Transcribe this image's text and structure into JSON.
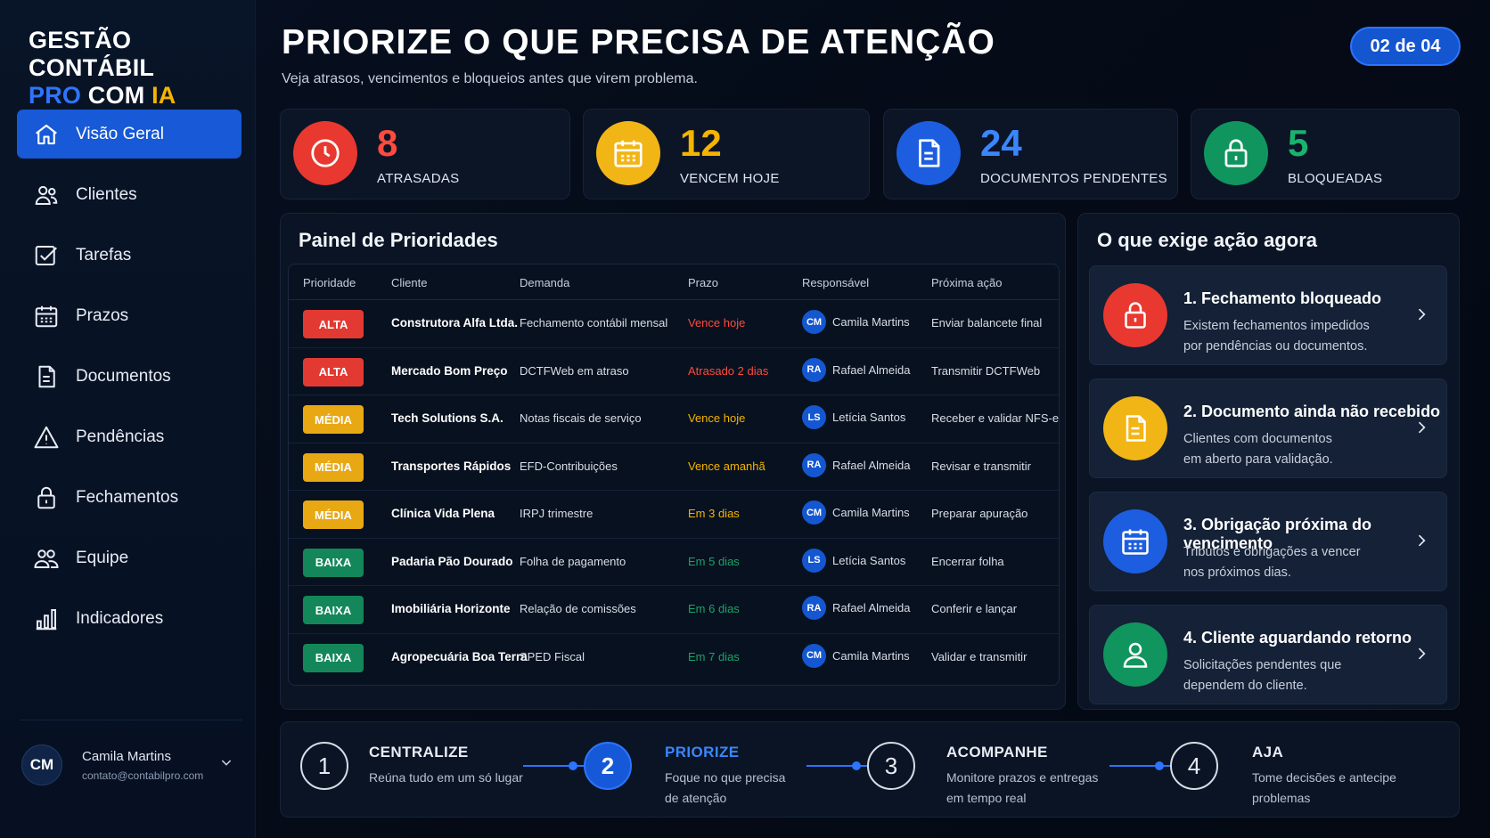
{
  "brand": {
    "line1": "GESTÃO CONTÁBIL",
    "pro": "PRO",
    "com": " COM ",
    "ia": "IA"
  },
  "nav": [
    {
      "label": "Visão Geral",
      "icon": "home-icon",
      "active": true
    },
    {
      "label": "Clientes",
      "icon": "users-icon"
    },
    {
      "label": "Tarefas",
      "icon": "checkbox-icon"
    },
    {
      "label": "Prazos",
      "icon": "calendar-icon"
    },
    {
      "label": "Documentos",
      "icon": "document-icon"
    },
    {
      "label": "Pendências",
      "icon": "warning-icon"
    },
    {
      "label": "Fechamentos",
      "icon": "lock-icon"
    },
    {
      "label": "Equipe",
      "icon": "team-icon"
    },
    {
      "label": "Indicadores",
      "icon": "bar-chart-icon"
    }
  ],
  "user": {
    "initials": "CM",
    "name": "Camila Martins",
    "email": "contato@contabilpro.com"
  },
  "header": {
    "title": "PRIORIZE O QUE PRECISA DE ATENÇÃO",
    "subtitle": "Veja atrasos, vencimentos e bloqueios antes que virem problema.",
    "page": "02 de 04"
  },
  "stats": [
    {
      "value": "8",
      "label": "ATRASADAS",
      "color": "#e8382f",
      "icon": "clock-icon"
    },
    {
      "value": "12",
      "label": "VENCEM HOJE",
      "color": "#f2b516",
      "icon": "calendar-icon"
    },
    {
      "value": "24",
      "label": "DOCUMENTOS PENDENTES",
      "color": "#1d5ee0",
      "icon": "document-icon"
    },
    {
      "value": "5",
      "label": "BLOQUEADAS",
      "color": "#10955e",
      "icon": "lock-icon"
    }
  ],
  "panel": {
    "title": "Painel de Prioridades",
    "headers": [
      "Prioridade",
      "Cliente",
      "Demanda",
      "Prazo",
      "Responsável",
      "Próxima ação"
    ],
    "rows": [
      {
        "priority": "ALTA",
        "client": "Construtora Alfa Ltda.",
        "demand": "Fechamento contábil mensal",
        "deadline": "Vence hoje",
        "initials": "CM",
        "resp": "Camila Martins",
        "next": "Enviar balancete final"
      },
      {
        "priority": "ALTA",
        "client": "Mercado Bom Preço",
        "demand": "DCTFWeb em atraso",
        "deadline": "Atrasado 2 dias",
        "initials": "RA",
        "resp": "Rafael Almeida",
        "next": "Transmitir DCTFWeb"
      },
      {
        "priority": "MÉDIA",
        "client": "Tech Solutions S.A.",
        "demand": "Notas fiscais de serviço",
        "deadline": "Vence hoje",
        "initials": "LS",
        "resp": "Letícia Santos",
        "next": "Receber e validar NFS-e"
      },
      {
        "priority": "MÉDIA",
        "client": "Transportes Rápidos",
        "demand": "EFD-Contribuições",
        "deadline": "Vence amanhã",
        "initials": "RA",
        "resp": "Rafael Almeida",
        "next": "Revisar e transmitir"
      },
      {
        "priority": "MÉDIA",
        "client": "Clínica Vida Plena",
        "demand": "IRPJ trimestre",
        "deadline": "Em 3 dias",
        "initials": "CM",
        "resp": "Camila Martins",
        "next": "Preparar apuração"
      },
      {
        "priority": "BAIXA",
        "client": "Padaria Pão Dourado",
        "demand": "Folha de pagamento",
        "deadline": "Em 5 dias",
        "initials": "LS",
        "resp": "Letícia Santos",
        "next": "Encerrar folha"
      },
      {
        "priority": "BAIXA",
        "client": "Imobiliária Horizonte",
        "demand": "Relação de comissões",
        "deadline": "Em 6 dias",
        "initials": "RA",
        "resp": "Rafael Almeida",
        "next": "Conferir e lançar"
      },
      {
        "priority": "BAIXA",
        "client": "Agropecuária Boa Terra",
        "demand": "SPED Fiscal",
        "deadline": "Em 7 dias",
        "initials": "CM",
        "resp": "Camila Martins",
        "next": "Validar e transmitir"
      }
    ]
  },
  "colors": {
    "alta": "#e23a33",
    "media": "#e8a814",
    "baixa": "#13875a",
    "deadline_alta": "#ff4a3d",
    "deadline_media": "#f4b400",
    "deadline_baixa": "#1aa36a",
    "accent": "#1759d6"
  },
  "actions": {
    "title": "O que exige ação agora",
    "items": [
      {
        "title": "1. Fechamento bloqueado",
        "line1": "Existem fechamentos impedidos",
        "line2": "por pendências ou documentos.",
        "color": "#e8382f",
        "icon": "lock-icon"
      },
      {
        "title": "2. Documento ainda não recebido",
        "line1": "Clientes com documentos",
        "line2": "em aberto para validação.",
        "color": "#f2b516",
        "icon": "document-icon"
      },
      {
        "title": "3. Obrigação próxima do vencimento",
        "line1": "Tributos e obrigações a vencer",
        "line2": "nos próximos dias.",
        "color": "#1d5ee0",
        "icon": "calendar-icon"
      },
      {
        "title": "4. Cliente aguardando retorno",
        "line1": "Solicitações pendentes que",
        "line2": "dependem do cliente.",
        "color": "#10955e",
        "icon": "user-icon"
      }
    ]
  },
  "steps": [
    {
      "num": "1",
      "title": "CENTRALIZE",
      "line1": "Reúna tudo em um só lugar",
      "line2": ""
    },
    {
      "num": "2",
      "title": "PRIORIZE",
      "line1": "Foque no que precisa",
      "line2": "de atenção",
      "active": true
    },
    {
      "num": "3",
      "title": "ACOMPANHE",
      "line1": "Monitore prazos e entregas",
      "line2": "em tempo real"
    },
    {
      "num": "4",
      "title": "AJA",
      "line1": "Tome decisões e antecipe",
      "line2": "problemas"
    }
  ]
}
